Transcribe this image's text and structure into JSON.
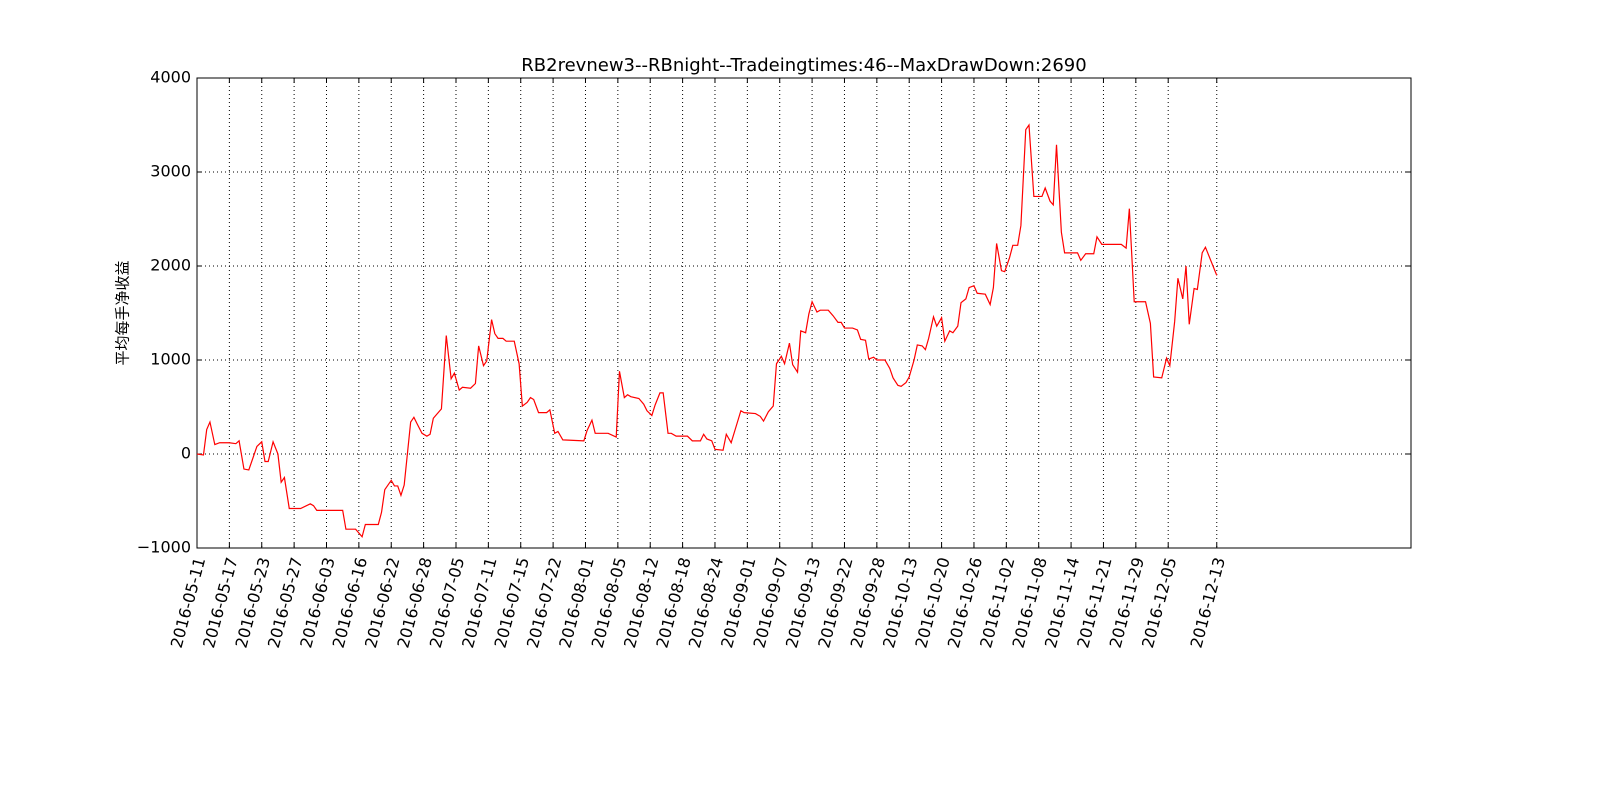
{
  "chart_data": {
    "type": "line",
    "title": "RB2revnew3--RBnight--Tradeingtimes:46--MaxDrawDown:2690",
    "y_label": "平均每手净收益",
    "grid": true,
    "xlim": [
      0,
      375
    ],
    "ylim": [
      -1000,
      4000
    ],
    "yticks": [
      {
        "value": -1000,
        "label": "−1000"
      },
      0,
      1000,
      2000,
      3000,
      4000
    ],
    "xticks": [
      {
        "value": 0,
        "label": "2016-05-11"
      },
      {
        "value": 10,
        "label": "2016-05-17"
      },
      {
        "value": 20,
        "label": "2016-05-23"
      },
      {
        "value": 30,
        "label": "2016-05-27"
      },
      {
        "value": 40,
        "label": "2016-06-03"
      },
      {
        "value": 50,
        "label": "2016-06-16"
      },
      {
        "value": 60,
        "label": "2016-06-22"
      },
      {
        "value": 70,
        "label": "2016-06-28"
      },
      {
        "value": 80,
        "label": "2016-07-05"
      },
      {
        "value": 90,
        "label": "2016-07-11"
      },
      {
        "value": 100,
        "label": "2016-07-15"
      },
      {
        "value": 110,
        "label": "2016-07-22"
      },
      {
        "value": 120,
        "label": "2016-08-01"
      },
      {
        "value": 130,
        "label": "2016-08-05"
      },
      {
        "value": 140,
        "label": "2016-08-12"
      },
      {
        "value": 150,
        "label": "2016-08-18"
      },
      {
        "value": 160,
        "label": "2016-08-24"
      },
      {
        "value": 170,
        "label": "2016-09-01"
      },
      {
        "value": 180,
        "label": "2016-09-07"
      },
      {
        "value": 190,
        "label": "2016-09-13"
      },
      {
        "value": 200,
        "label": "2016-09-22"
      },
      {
        "value": 210,
        "label": "2016-09-28"
      },
      {
        "value": 220,
        "label": "2016-10-13"
      },
      {
        "value": 230,
        "label": "2016-10-20"
      },
      {
        "value": 240,
        "label": "2016-10-26"
      },
      {
        "value": 250,
        "label": "2016-11-02"
      },
      {
        "value": 260,
        "label": "2016-11-08"
      },
      {
        "value": 270,
        "label": "2016-11-14"
      },
      {
        "value": 280,
        "label": "2016-11-21"
      },
      {
        "value": 290,
        "label": "2016-11-29"
      },
      {
        "value": 300,
        "label": "2016-12-05"
      },
      {
        "value": 315,
        "label": "2016-12-13"
      }
    ],
    "series": [
      {
        "color": "#ff0000",
        "x": [
          0,
          2,
          3,
          4,
          5.5,
          7,
          10,
          12,
          13,
          14.5,
          16,
          18.5,
          20,
          21,
          22,
          23.5,
          25,
          26,
          27,
          28.5,
          32,
          35,
          36,
          37,
          45,
          46,
          49,
          51,
          52,
          56,
          57,
          58,
          60,
          61,
          62,
          63,
          64,
          66,
          67,
          68,
          69.5,
          71,
          72,
          73,
          74.5,
          75.5,
          77,
          78.5,
          79.5,
          81,
          82,
          84.5,
          86,
          87,
          88.5,
          89.5,
          91,
          92,
          93,
          94.5,
          95.5,
          98,
          99.5,
          100.5,
          102,
          103,
          104,
          105.5,
          108,
          109,
          110.5,
          111.5,
          113,
          119.5,
          120.5,
          122,
          123,
          127,
          129.5,
          130.5,
          132,
          133,
          134,
          136.5,
          138,
          139,
          140.5,
          141.5,
          143,
          144,
          145.5,
          146.5,
          148,
          151.5,
          153,
          155.5,
          156.5,
          157.5,
          159,
          160,
          162.5,
          163.5,
          165,
          166.5,
          168,
          169,
          172.5,
          174,
          175,
          176.5,
          178,
          179,
          180.5,
          181.5,
          183,
          184,
          185.5,
          186.5,
          188,
          189,
          190,
          191.5,
          192.5,
          195,
          196.5,
          198,
          199,
          200,
          202.5,
          204,
          205,
          206.5,
          207.5,
          209,
          210,
          212.5,
          214,
          215,
          216.5,
          217.5,
          219,
          220,
          221.5,
          222.5,
          224,
          225,
          226,
          227.5,
          228.5,
          230,
          231,
          232.5,
          233.5,
          235,
          236,
          237.5,
          238.5,
          240,
          241,
          243.5,
          245,
          246,
          247,
          248.5,
          249.5,
          251,
          252,
          253.5,
          254.5,
          256,
          257,
          258.5,
          261,
          262,
          263.5,
          264.5,
          265.5,
          267,
          268,
          272,
          273,
          274.5,
          277,
          278,
          279.5,
          285.5,
          287,
          288,
          289.5,
          293,
          294.5,
          295.5,
          298,
          299.5,
          300.5,
          302,
          303,
          304.5,
          305.5,
          306.5,
          308,
          309,
          310.5,
          311.5,
          315
        ],
        "values": [
          0,
          -10,
          260,
          340,
          100,
          120,
          120,
          110,
          140,
          -160,
          -170,
          80,
          130,
          -80,
          -80,
          130,
          0,
          -300,
          -250,
          -580,
          -580,
          -530,
          -550,
          -600,
          -600,
          -800,
          -800,
          -880,
          -750,
          -750,
          -620,
          -380,
          -280,
          -340,
          -340,
          -440,
          -330,
          340,
          390,
          320,
          220,
          190,
          210,
          380,
          440,
          480,
          1260,
          800,
          860,
          680,
          710,
          700,
          750,
          1150,
          940,
          990,
          1430,
          1280,
          1230,
          1230,
          1200,
          1200,
          960,
          510,
          550,
          600,
          580,
          440,
          440,
          470,
          220,
          240,
          150,
          140,
          250,
          360,
          220,
          220,
          180,
          880,
          600,
          630,
          610,
          590,
          530,
          460,
          410,
          520,
          650,
          650,
          220,
          220,
          190,
          190,
          140,
          140,
          210,
          160,
          140,
          50,
          40,
          210,
          120,
          290,
          460,
          440,
          430,
          400,
          350,
          450,
          510,
          960,
          1040,
          960,
          1180,
          950,
          870,
          1310,
          1290,
          1490,
          1620,
          1510,
          1530,
          1530,
          1470,
          1400,
          1400,
          1340,
          1340,
          1320,
          1220,
          1210,
          1010,
          1030,
          1000,
          1000,
          910,
          810,
          730,
          720,
          760,
          820,
          1000,
          1160,
          1150,
          1110,
          1230,
          1460,
          1360,
          1450,
          1200,
          1310,
          1290,
          1360,
          1610,
          1650,
          1770,
          1790,
          1710,
          1700,
          1590,
          1770,
          2240,
          1950,
          1940,
          2090,
          2220,
          2220,
          2430,
          3450,
          3500,
          2740,
          2740,
          2830,
          2690,
          2650,
          3290,
          2360,
          2140,
          2140,
          2060,
          2130,
          2130,
          2310,
          2230,
          2230,
          2190,
          2610,
          1620,
          1620,
          1390,
          820,
          810,
          1020,
          940,
          1410,
          1870,
          1650,
          2000,
          1380,
          1760,
          1750,
          2140,
          2200,
          1900
        ]
      }
    ]
  }
}
